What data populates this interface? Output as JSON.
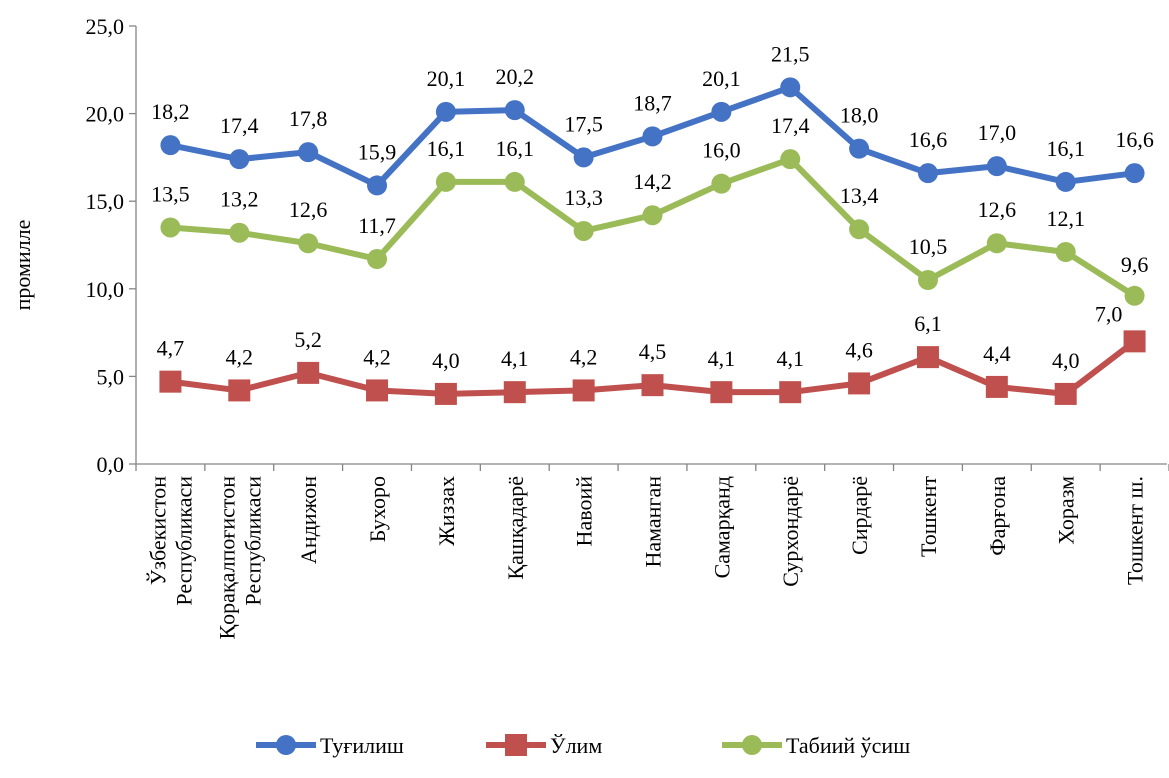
{
  "chart_data": {
    "type": "line",
    "title": "",
    "xlabel": "",
    "ylabel": "промилле",
    "ylim": [
      0,
      25
    ],
    "yticks": [
      "0,0",
      "5,0",
      "10,0",
      "15,0",
      "20,0",
      "25,0"
    ],
    "ytick_values": [
      0,
      5,
      10,
      15,
      20,
      25
    ],
    "grid": false,
    "legend_position": "bottom",
    "categories": [
      [
        "Ўзбекистон",
        "Республикаси"
      ],
      [
        "Қорақалпоғистон",
        "Республикаси"
      ],
      [
        "Андижон"
      ],
      [
        "Бухоро"
      ],
      [
        "Жиззах"
      ],
      [
        "Қашқадарё"
      ],
      [
        "Навоий"
      ],
      [
        "Наманган"
      ],
      [
        "Самарқанд"
      ],
      [
        "Сурхондарё"
      ],
      [
        "Сирдарё"
      ],
      [
        "Тошкент"
      ],
      [
        "Фарғона"
      ],
      [
        "Хоразм"
      ],
      [
        "Тошкент ш."
      ]
    ],
    "series": [
      {
        "name": "Туғилиш",
        "color": "#4472C4",
        "marker": "circle",
        "values": [
          18.2,
          17.4,
          17.8,
          15.9,
          20.1,
          20.2,
          17.5,
          18.7,
          20.1,
          21.5,
          18.0,
          16.6,
          17.0,
          16.1,
          16.6
        ],
        "labels": [
          "18,2",
          "17,4",
          "17,8",
          "15,9",
          "20,1",
          "20,2",
          "17,5",
          "18,7",
          "20,1",
          "21,5",
          "18,0",
          "16,6",
          "17,0",
          "16,1",
          "16,6"
        ]
      },
      {
        "name": "Ўлим",
        "color": "#C0504D",
        "marker": "square",
        "values": [
          4.7,
          4.2,
          5.2,
          4.2,
          4.0,
          4.1,
          4.2,
          4.5,
          4.1,
          4.1,
          4.6,
          6.1,
          4.4,
          4.0,
          7.0
        ],
        "labels": [
          "4,7",
          "4,2",
          "5,2",
          "4,2",
          "4,0",
          "4,1",
          "4,2",
          "4,5",
          "4,1",
          "4,1",
          "4,6",
          "6,1",
          "4,4",
          "4,0",
          "7,0"
        ]
      },
      {
        "name": "Табиий ўсиш",
        "color": "#9BBB59",
        "marker": "circle",
        "values": [
          13.5,
          13.2,
          12.6,
          11.7,
          16.1,
          16.1,
          13.3,
          14.2,
          16.0,
          17.4,
          13.4,
          10.5,
          12.6,
          12.1,
          9.6
        ],
        "labels": [
          "13,5",
          "13,2",
          "12,6",
          "11,7",
          "16,1",
          "16,1",
          "13,3",
          "14,2",
          "16,0",
          "17,4",
          "13,4",
          "10,5",
          "12,6",
          "12,1",
          "9,6"
        ]
      }
    ]
  }
}
